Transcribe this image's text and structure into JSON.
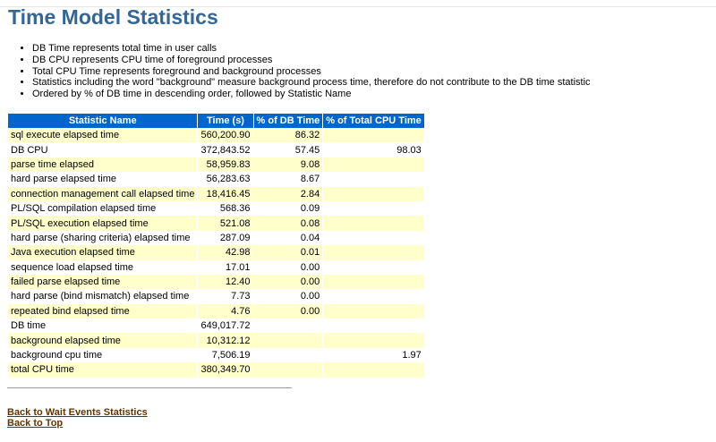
{
  "title": "Time Model Statistics",
  "bullets": [
    "DB Time represents total time in user calls",
    "DB CPU represents CPU time of foreground processes",
    "Total CPU Time represents foreground and background processes",
    "Statistics including the word \"background\" measure background process time, therefore do not contribute to the DB time statistic",
    "Ordered by % of DB time in descending order, followed by Statistic Name"
  ],
  "table": {
    "headers": [
      "Statistic Name",
      "Time (s)",
      "% of DB Time",
      "% of Total CPU Time"
    ],
    "rows": [
      [
        "sql execute elapsed time",
        "560,200.90",
        "86.32",
        ""
      ],
      [
        "DB CPU",
        "372,843.52",
        "57.45",
        "98.03"
      ],
      [
        "parse time elapsed",
        "58,959.83",
        "9.08",
        ""
      ],
      [
        "hard parse elapsed time",
        "56,283.63",
        "8.67",
        ""
      ],
      [
        "connection management call elapsed time",
        "18,416.45",
        "2.84",
        ""
      ],
      [
        "PL/SQL compilation elapsed time",
        "568.36",
        "0.09",
        ""
      ],
      [
        "PL/SQL execution elapsed time",
        "521.08",
        "0.08",
        ""
      ],
      [
        "hard parse (sharing criteria) elapsed time",
        "287.09",
        "0.04",
        ""
      ],
      [
        "Java execution elapsed time",
        "42.98",
        "0.01",
        ""
      ],
      [
        "sequence load elapsed time",
        "17.01",
        "0.00",
        ""
      ],
      [
        "failed parse elapsed time",
        "12.40",
        "0.00",
        ""
      ],
      [
        "hard parse (bind mismatch) elapsed time",
        "7.73",
        "0.00",
        ""
      ],
      [
        "repeated bind elapsed time",
        "4.76",
        "0.00",
        ""
      ],
      [
        "DB time",
        "649,017.72",
        "",
        ""
      ],
      [
        "background elapsed time",
        "10,312.12",
        "",
        ""
      ],
      [
        "background cpu time",
        "7,506.19",
        "",
        "1.97"
      ],
      [
        "total CPU time",
        "380,349.70",
        "",
        ""
      ]
    ]
  },
  "links": [
    "Back to Wait Events Statistics",
    "Back to Top"
  ],
  "colors": {
    "title": "#336699",
    "header": "#0066cc",
    "stripe": "#ffffcc",
    "link": "#663300"
  }
}
